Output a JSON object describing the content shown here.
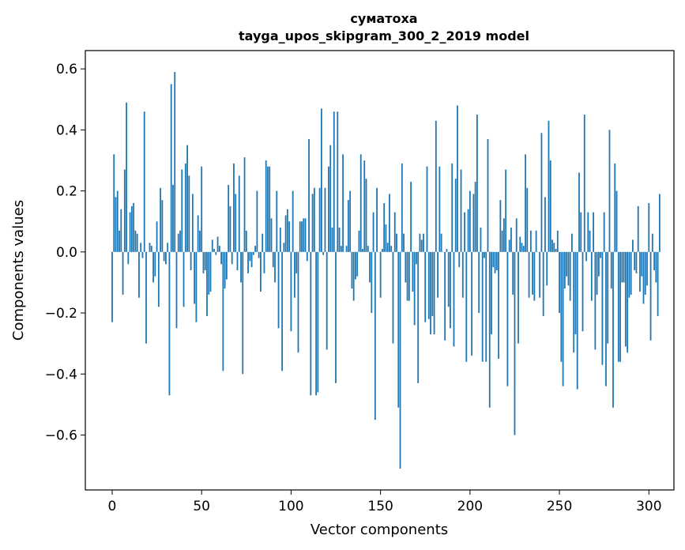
{
  "chart_data": {
    "type": "bar",
    "title": "суматоха",
    "subtitle": "tayga_upos_skipgram_300_2_2019 model",
    "xlabel": "Vector components",
    "ylabel": "Components values",
    "xlim": [
      -15,
      314
    ],
    "ylim": [
      -0.78,
      0.66
    ],
    "xticks": [
      0,
      50,
      100,
      150,
      200,
      250,
      300
    ],
    "yticks": [
      -0.6,
      -0.4,
      -0.2,
      0.0,
      0.2,
      0.4,
      0.6
    ],
    "xtick_labels": [
      "0",
      "50",
      "100",
      "150",
      "200",
      "250",
      "300"
    ],
    "ytick_labels": [
      "−0.6",
      "−0.4",
      "−0.2",
      "0.0",
      "0.2",
      "0.4",
      "0.6"
    ],
    "bar_color": "#1f77b4",
    "series": [
      {
        "name": "components",
        "values": [
          -0.23,
          0.32,
          0.18,
          0.2,
          0.07,
          0.14,
          -0.14,
          0.27,
          0.49,
          -0.04,
          0.13,
          0.15,
          0.16,
          0.07,
          0.06,
          -0.15,
          0.03,
          -0.02,
          0.46,
          -0.3,
          0.0,
          0.03,
          0.02,
          -0.1,
          -0.08,
          0.1,
          -0.18,
          0.21,
          0.17,
          -0.03,
          -0.04,
          0.03,
          -0.47,
          0.55,
          0.22,
          0.59,
          -0.25,
          0.06,
          0.07,
          0.27,
          -0.18,
          0.29,
          0.35,
          0.25,
          -0.06,
          0.19,
          -0.17,
          -0.23,
          0.12,
          0.07,
          0.28,
          -0.07,
          -0.06,
          -0.21,
          -0.14,
          -0.13,
          0.04,
          0.01,
          -0.01,
          0.05,
          0.02,
          -0.04,
          -0.39,
          -0.12,
          -0.09,
          0.22,
          0.15,
          -0.04,
          0.29,
          0.19,
          -0.06,
          0.25,
          -0.1,
          -0.4,
          0.31,
          0.07,
          -0.07,
          -0.03,
          -0.05,
          -0.01,
          0.02,
          0.2,
          -0.02,
          -0.13,
          0.06,
          -0.07,
          0.3,
          0.28,
          0.28,
          0.11,
          -0.05,
          -0.1,
          0.2,
          -0.25,
          0.08,
          -0.39,
          0.03,
          0.12,
          0.14,
          0.1,
          -0.26,
          0.2,
          -0.15,
          -0.07,
          -0.33,
          0.1,
          0.1,
          0.11,
          0.11,
          -0.03,
          0.37,
          -0.47,
          0.19,
          0.21,
          -0.47,
          -0.46,
          0.21,
          0.47,
          -0.01,
          0.21,
          -0.32,
          0.28,
          0.35,
          0.08,
          0.46,
          -0.43,
          0.46,
          0.08,
          0.02,
          0.32,
          0.0,
          0.02,
          0.17,
          0.2,
          -0.12,
          -0.16,
          -0.09,
          -0.08,
          0.07,
          0.32,
          0.01,
          0.3,
          0.24,
          0.02,
          -0.1,
          -0.2,
          0.13,
          -0.55,
          0.21,
          0.0,
          -0.15,
          0.01,
          0.16,
          0.09,
          0.03,
          0.19,
          0.02,
          -0.3,
          0.13,
          0.06,
          -0.51,
          -0.71,
          0.29,
          0.06,
          -0.1,
          -0.16,
          -0.16,
          0.23,
          -0.13,
          -0.24,
          -0.04,
          -0.43,
          0.06,
          0.04,
          0.06,
          -0.23,
          0.28,
          -0.22,
          -0.27,
          -0.21,
          -0.27,
          0.43,
          -0.15,
          0.28,
          0.06,
          0.0,
          -0.29,
          0.01,
          -0.18,
          -0.25,
          0.29,
          -0.31,
          0.24,
          0.48,
          -0.05,
          0.27,
          -0.15,
          0.13,
          -0.36,
          0.14,
          0.2,
          -0.34,
          0.19,
          0.23,
          0.45,
          -0.2,
          0.08,
          -0.36,
          -0.02,
          -0.36,
          0.37,
          -0.51,
          -0.27,
          -0.05,
          -0.07,
          -0.06,
          -0.35,
          0.17,
          0.07,
          0.11,
          0.27,
          -0.44,
          0.04,
          0.08,
          -0.14,
          -0.6,
          0.11,
          -0.3,
          0.05,
          0.03,
          0.02,
          0.32,
          0.21,
          -0.15,
          0.07,
          -0.14,
          -0.16,
          0.07,
          0.0,
          -0.15,
          0.39,
          -0.21,
          0.18,
          -0.11,
          0.43,
          0.3,
          0.04,
          0.03,
          0.01,
          0.07,
          -0.2,
          -0.36,
          -0.44,
          -0.12,
          -0.08,
          -0.11,
          -0.16,
          0.06,
          -0.33,
          -0.27,
          -0.45,
          0.26,
          0.13,
          -0.26,
          0.45,
          -0.03,
          0.13,
          0.07,
          -0.16,
          0.13,
          -0.32,
          -0.14,
          -0.08,
          -0.02,
          -0.37,
          0.13,
          -0.44,
          -0.3,
          0.4,
          -0.12,
          -0.51,
          0.29,
          0.2,
          -0.36,
          -0.36,
          -0.1,
          -0.1,
          -0.31,
          -0.33,
          -0.15,
          -0.14,
          0.04,
          -0.06,
          -0.07,
          0.15,
          -0.13,
          -0.08,
          -0.17,
          -0.14,
          -0.11,
          0.16,
          -0.29,
          0.06,
          -0.06,
          -0.1,
          -0.21,
          0.19
        ]
      }
    ]
  }
}
